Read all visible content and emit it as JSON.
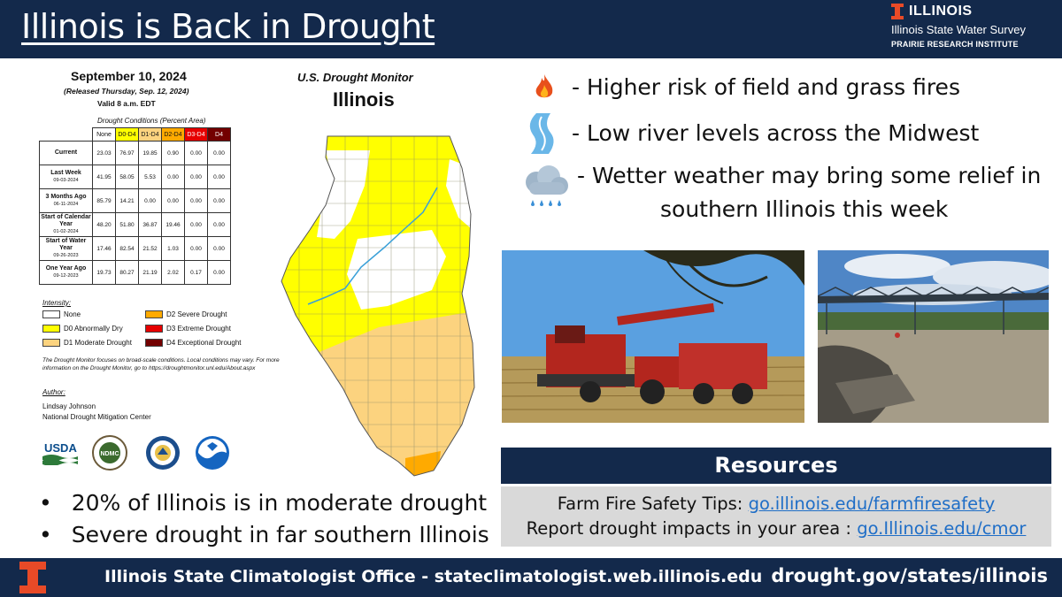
{
  "header": {
    "title": "Illinois is Back in Drought",
    "brand_name": "ILLINOIS",
    "brand_sub": "Illinois State Water Survey",
    "brand_sub2": "PRAIRIE RESEARCH INSTITUTE"
  },
  "drought_monitor": {
    "date": "September 10, 2024",
    "released": "(Released Thursday, Sep. 12, 2024)",
    "valid": "Valid 8 a.m. EDT",
    "monitor_title": "U.S. Drought Monitor",
    "state": "Illinois",
    "conditions_title": "Drought Conditions (Percent Area)",
    "columns": [
      "None",
      "D0-D4",
      "D1-D4",
      "D2-D4",
      "D3-D4",
      "D4"
    ],
    "rows": [
      {
        "label": "Current",
        "sub": "",
        "values": [
          "23.03",
          "76.97",
          "19.85",
          "0.90",
          "0.00",
          "0.00"
        ]
      },
      {
        "label": "Last Week",
        "sub": "09-03-2024",
        "values": [
          "41.95",
          "58.05",
          "5.53",
          "0.00",
          "0.00",
          "0.00"
        ]
      },
      {
        "label": "3 Months Ago",
        "sub": "06-11-2024",
        "values": [
          "85.79",
          "14.21",
          "0.00",
          "0.00",
          "0.00",
          "0.00"
        ]
      },
      {
        "label": "Start of Calendar Year",
        "sub": "01-02-2024",
        "values": [
          "48.20",
          "51.80",
          "36.87",
          "19.46",
          "0.00",
          "0.00"
        ]
      },
      {
        "label": "Start of Water Year",
        "sub": "09-26-2023",
        "values": [
          "17.46",
          "82.54",
          "21.52",
          "1.03",
          "0.00",
          "0.00"
        ]
      },
      {
        "label": "One Year Ago",
        "sub": "09-12-2023",
        "values": [
          "19.73",
          "80.27",
          "21.19",
          "2.02",
          "0.17",
          "0.00"
        ]
      }
    ],
    "intensity_label": "Intensity:",
    "legend": [
      {
        "label": "None",
        "color": "#ffffff"
      },
      {
        "label": "D0 Abnormally Dry",
        "color": "#ffff00"
      },
      {
        "label": "D1 Moderate Drought",
        "color": "#fcd37f"
      },
      {
        "label": "D2 Severe Drought",
        "color": "#ffaa00"
      },
      {
        "label": "D3 Extreme Drought",
        "color": "#e60000"
      },
      {
        "label": "D4 Exceptional Drought",
        "color": "#730000"
      }
    ],
    "note": "The Drought Monitor focuses on broad-scale conditions. Local conditions may vary. For more information on the Drought Monitor, go to https://droughtmonitor.unl.edu/About.aspx",
    "author_label": "Author:",
    "author_name": "Lindsay Johnson",
    "author_org": "National Drought Mitigation Center",
    "agency_logos": [
      "USDA",
      "NDMC",
      "DOC",
      "NOAA"
    ]
  },
  "facts": [
    "20% of Illinois is in moderate drought",
    "Severe drought in far southern Illinois"
  ],
  "impacts": [
    {
      "icon": "fire-icon",
      "text": "- Higher risk of field and grass fires"
    },
    {
      "icon": "river-icon",
      "text": "- Low river levels across the Midwest"
    },
    {
      "icon": "rain-cloud-icon",
      "text_line1": "- Wetter weather may bring some relief in",
      "text_line2": "southern Illinois this week"
    }
  ],
  "photos": [
    "harvest-combine-photo",
    "low-river-bridge-photo"
  ],
  "resources": {
    "title": "Resources",
    "line1_label": "Farm Fire Safety Tips: ",
    "line1_link": "go.illinois.edu/farmfiresafety",
    "line2_label": "Report drought impacts in your area : ",
    "line2_link": "go.Illinois.edu/cmor"
  },
  "footer": {
    "left": "Illinois State Climatologist Office - stateclimatologist.web.illinois.edu",
    "right": "drought.gov/states/illinois"
  },
  "colors": {
    "navy": "#13294b",
    "orange": "#e84a27",
    "link": "#1f6ec7"
  }
}
